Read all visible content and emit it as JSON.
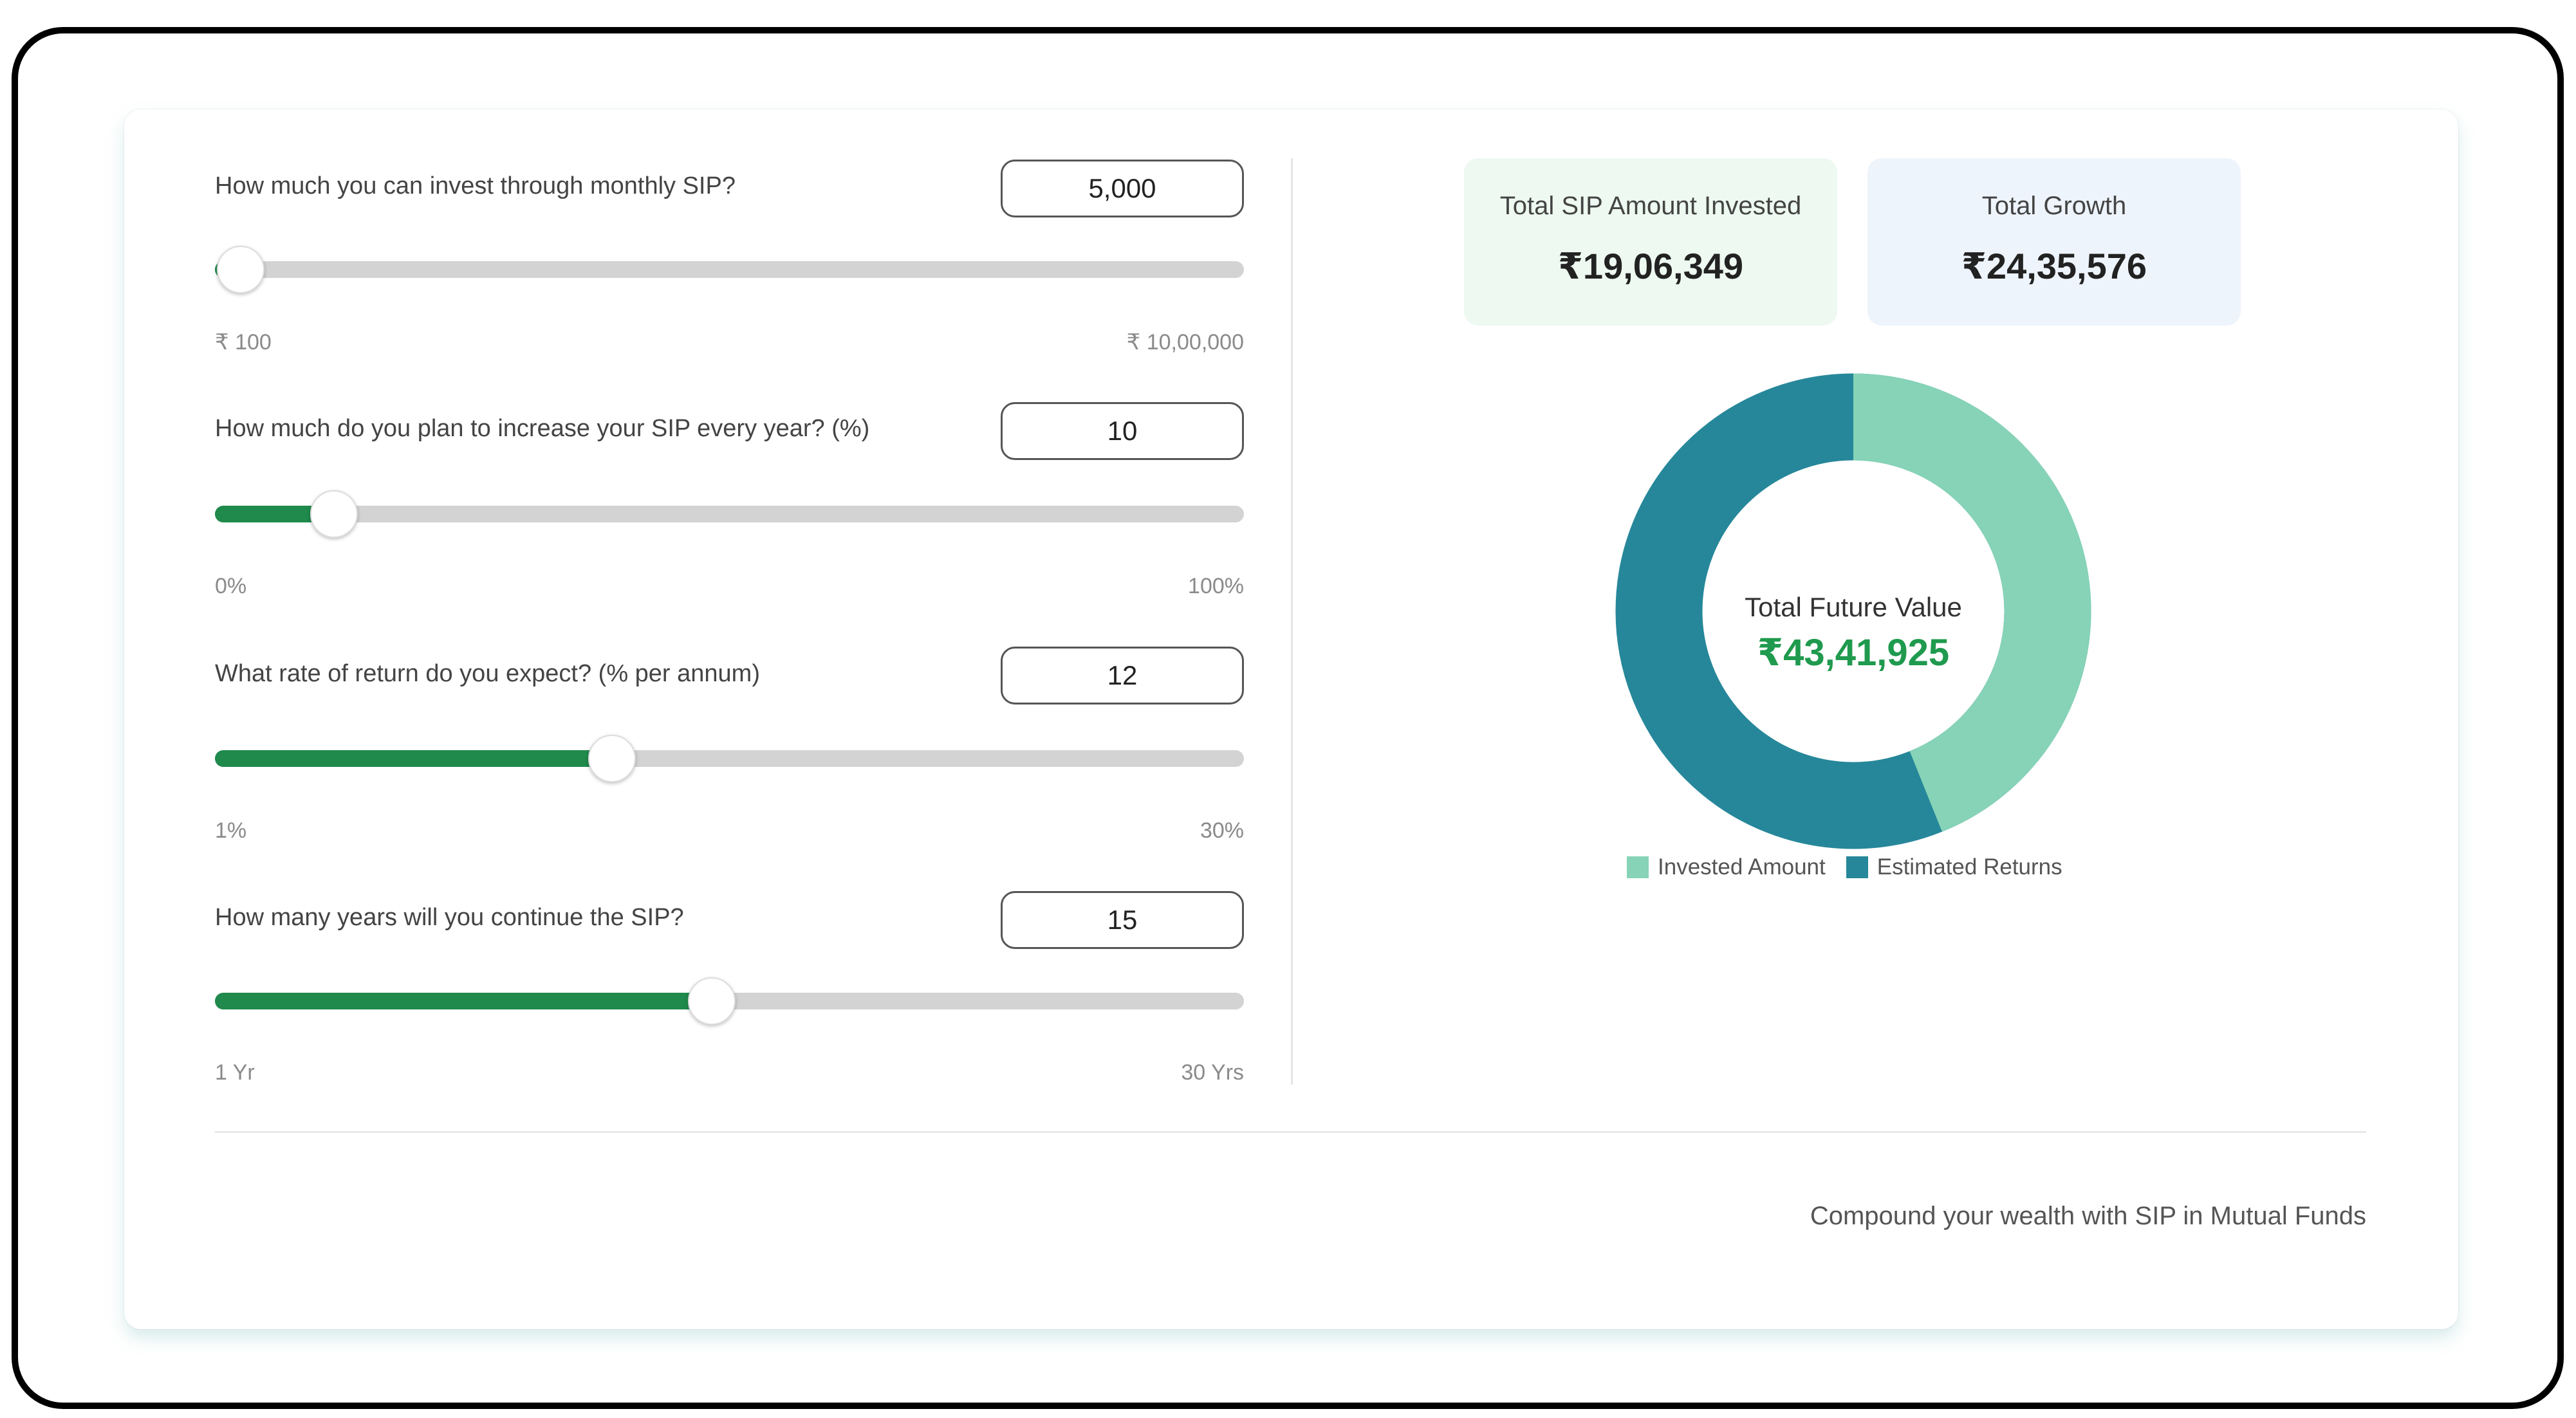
{
  "sliders": [
    {
      "question": "How much you can invest through monthly SIP?",
      "value": "5,000",
      "min_label": "₹ 100",
      "max_label": "₹ 10,00,000",
      "fill_fraction": 0.025
    },
    {
      "question": "How much do you plan to increase your SIP every year? (%)",
      "value": "10",
      "min_label": "0%",
      "max_label": "100%",
      "fill_fraction": 0.116
    },
    {
      "question": "What rate of return do you expect? (% per annum)",
      "value": "12",
      "min_label": "1%",
      "max_label": "30%",
      "fill_fraction": 0.386
    },
    {
      "question": "How many years will you continue the SIP?",
      "value": "15",
      "min_label": "1 Yr",
      "max_label": "30 Yrs",
      "fill_fraction": 0.483
    }
  ],
  "summary": {
    "invested_label": "Total SIP Amount Invested",
    "invested_value": "₹19,06,349",
    "growth_label": "Total Growth",
    "growth_value": "₹24,35,576"
  },
  "donut": {
    "center_label": "Total Future Value",
    "center_value": "₹43,41,925",
    "invested_amount": 1906349,
    "estimated_returns": 2435576,
    "legend": [
      "Invested Amount",
      "Estimated Returns"
    ],
    "colors": {
      "invested": "#86d3b7",
      "returns": "#26879a"
    }
  },
  "footer": {
    "tagline": "Compound your wealth with SIP in Mutual Funds"
  }
}
